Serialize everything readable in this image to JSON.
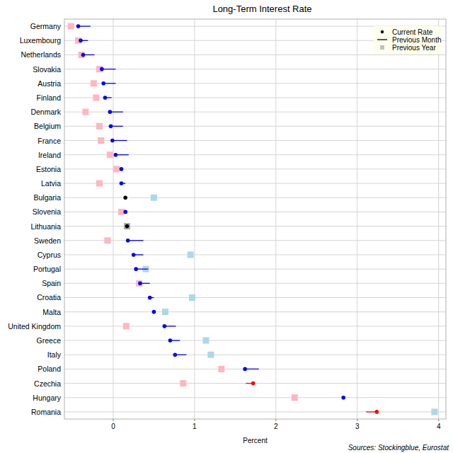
{
  "chart_data": {
    "type": "dot",
    "title": "Long-Term Interest Rate",
    "x_label": "Percent",
    "source": "Sources: Stockingblue, Eurostat",
    "orientation": "horizontal",
    "grid": true,
    "legend": "top-right",
    "categories": [
      "Germany",
      "Luxembourg",
      "Netherlands",
      "Slovakia",
      "Austria",
      "Finland",
      "Denmark",
      "Belgium",
      "France",
      "Ireland",
      "Estonia",
      "Latvia",
      "Bulgaria",
      "Slovenia",
      "Lithuania",
      "Sweden",
      "Cyprus",
      "Portugal",
      "Spain",
      "Croatia",
      "Malta",
      "United Kingdom",
      "Greece",
      "Italy",
      "Poland",
      "Czechia",
      "Hungary",
      "Romania"
    ],
    "xlim": [
      -0.6,
      4.09
    ],
    "xticks": [
      0,
      1,
      2,
      3,
      4
    ],
    "series": [
      {
        "name": "Current Rate",
        "type": "scatter",
        "marker": "circle",
        "color": "#000000",
        "values": [
          -0.43,
          -0.4,
          -0.37,
          -0.14,
          -0.12,
          -0.1,
          -0.04,
          -0.03,
          -0.01,
          0.03,
          0.1,
          0.1,
          0.15,
          0.15,
          0.17,
          0.18,
          0.25,
          0.28,
          0.33,
          0.45,
          0.5,
          0.63,
          0.7,
          0.76,
          1.62,
          1.72,
          2.83,
          3.24
        ],
        "colors": [
          "#0000ff",
          "#0000ff",
          "#0000ff",
          "#0000ff",
          "#0000ff",
          "#0000ff",
          "#0000ff",
          "#0000ff",
          "#0000ff",
          "#0000ff",
          "#0000ff",
          "#0000ff",
          "#000000",
          "#0000ff",
          "#000000",
          "#0000ff",
          "#0000ff",
          "#0000ff",
          "#0000ff",
          "#0000ff",
          "#0000ff",
          "#0000ff",
          "#0000ff",
          "#0000ff",
          "#0000ff",
          "#ff0000",
          "#0000ff",
          "#ff0000"
        ]
      },
      {
        "name": "Previous Month",
        "type": "line",
        "line_style": "solid",
        "color": "#000000",
        "values": [
          -0.28,
          -0.31,
          -0.23,
          0.03,
          0.03,
          -0.02,
          0.12,
          0.12,
          0.17,
          0.19,
          0.12,
          0.15,
          0.15,
          0.15,
          0.17,
          0.37,
          0.37,
          0.43,
          0.45,
          0.5,
          0.5,
          0.77,
          0.82,
          0.9,
          1.79,
          1.63,
          2.83,
          3.11
        ]
      },
      {
        "name": "Previous Year",
        "type": "scatter",
        "marker": "square",
        "color": "#c0c0c0",
        "values": [
          -0.52,
          -0.43,
          -0.39,
          -0.17,
          -0.24,
          -0.21,
          -0.34,
          -0.17,
          -0.15,
          -0.04,
          0.04,
          -0.17,
          0.5,
          0.1,
          0.17,
          -0.07,
          0.95,
          0.4,
          0.32,
          0.97,
          0.64,
          0.16,
          1.14,
          1.2,
          1.33,
          0.86,
          2.23,
          3.95
        ],
        "colors": [
          "#ffb6c1",
          "#ffb6c1",
          "#ffb6c1",
          "#ffb6c1",
          "#ffb6c1",
          "#ffb6c1",
          "#ffb6c1",
          "#ffb6c1",
          "#ffb6c1",
          "#ffb6c1",
          "#ffb6c1",
          "#ffb6c1",
          "#add8e6",
          "#ffb6c1",
          "#aaaaaa",
          "#ffb6c1",
          "#add8e6",
          "#add8e6",
          "#ffb6c1",
          "#add8e6",
          "#add8e6",
          "#ffb6c1",
          "#add8e6",
          "#add8e6",
          "#ffb6c1",
          "#ffb6c1",
          "#ffb6c1",
          "#add8e6"
        ]
      }
    ]
  }
}
